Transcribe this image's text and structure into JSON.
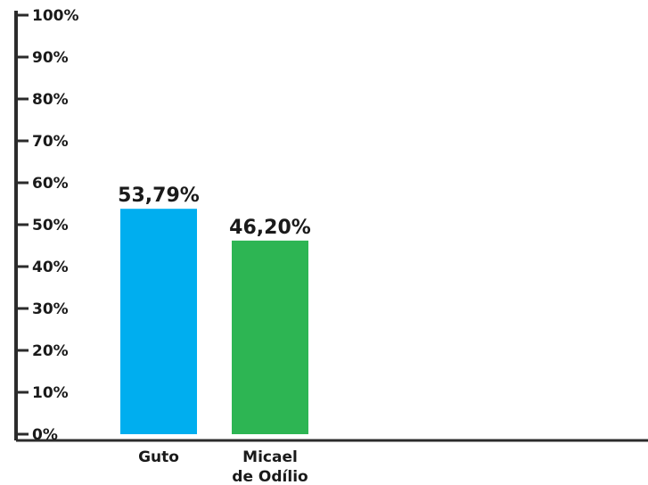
{
  "chart_data": {
    "type": "bar",
    "categories": [
      [
        "Guto"
      ],
      [
        "Micael",
        "de Odílio"
      ]
    ],
    "values": [
      53.79,
      46.2
    ],
    "value_labels": [
      "53,79%",
      "46,20%"
    ],
    "colors": [
      "#00aeef",
      "#2db553"
    ],
    "ylim": [
      0,
      100
    ],
    "yticks": [
      {
        "value": 0,
        "label": "0%"
      },
      {
        "value": 10,
        "label": "10%"
      },
      {
        "value": 20,
        "label": "20%"
      },
      {
        "value": 30,
        "label": "30%"
      },
      {
        "value": 40,
        "label": "40%"
      },
      {
        "value": 50,
        "label": "50%"
      },
      {
        "value": 60,
        "label": "60%"
      },
      {
        "value": 70,
        "label": "70%"
      },
      {
        "value": 80,
        "label": "80%"
      },
      {
        "value": 90,
        "label": "90%"
      },
      {
        "value": 100,
        "label": "100%"
      }
    ],
    "title": "",
    "xlabel": "",
    "ylabel": "",
    "grid": false,
    "axis_color": "#2b2b2b"
  }
}
